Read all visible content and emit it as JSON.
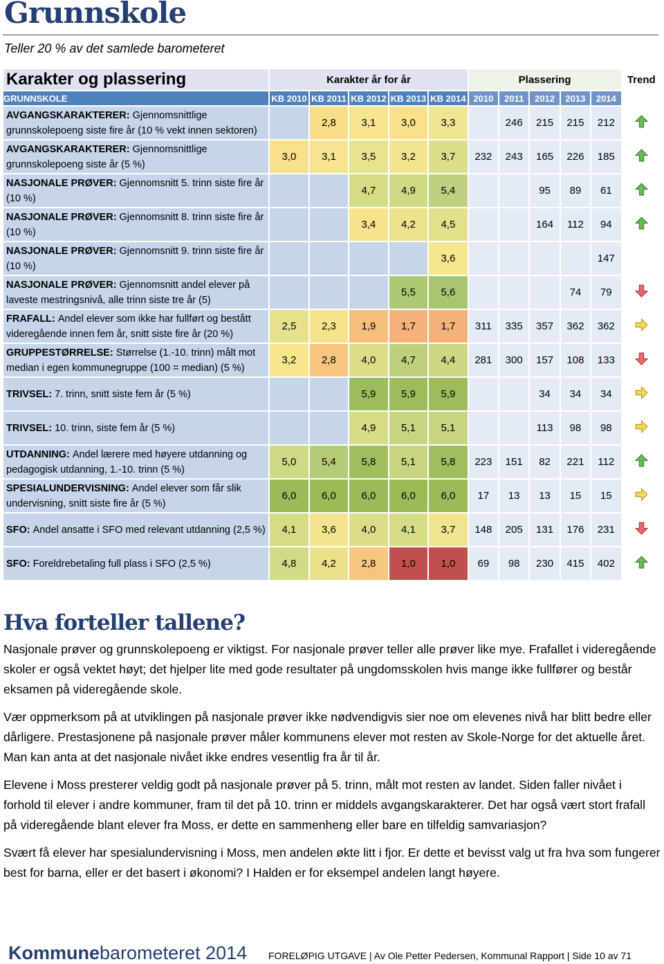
{
  "header": {
    "title": "Grunnskole",
    "subtitle": "Teller 20 % av det samlede barometeret"
  },
  "table": {
    "title": "Karakter og plassering",
    "group_grades": "Karakter år for år",
    "group_ranks": "Plassering",
    "group_trend": "Trend",
    "section": "GRUNNSKOLE",
    "grade_columns": [
      "KB 2010",
      "KB 2011",
      "KB 2012",
      "KB 2013",
      "KB 2014"
    ],
    "rank_columns": [
      "2010",
      "2011",
      "2012",
      "2013",
      "2014"
    ],
    "rows": [
      {
        "lead": "AVGANGSKARAKTERER:",
        "text": "Gjennomsnittlige grunnskolepoeng siste fire år (10 % vekt innen sektoren)",
        "grades": [
          null,
          "2,8",
          "3,1",
          "3,0",
          "3,3"
        ],
        "colors": [
          null,
          "#f9dc88",
          "#f7e48e",
          "#f9e08b",
          "#eee692"
        ],
        "ranks": [
          null,
          246,
          215,
          215,
          212
        ],
        "trend": "up"
      },
      {
        "lead": "AVGANGSKARAKTERER:",
        "text": "Gjennomsnittlige grunnskolepoeng siste år (5 %)",
        "grades": [
          "3,0",
          "3,1",
          "3,5",
          "3,2",
          "3,7"
        ],
        "colors": [
          "#f9e08b",
          "#f7e48e",
          "#e7e390",
          "#f3e58f",
          "#dcdf8a"
        ],
        "ranks": [
          232,
          243,
          165,
          226,
          185
        ],
        "trend": "up"
      },
      {
        "lead": "NASJONALE PRØVER:",
        "text": "Gjennomsnitt 5. trinn siste fire år (10 %)",
        "grades": [
          null,
          null,
          "4,7",
          "4,9",
          "5,4"
        ],
        "colors": [
          null,
          null,
          "#d6dc86",
          "#d0d984",
          "#bfd17e"
        ],
        "ranks": [
          null,
          null,
          95,
          89,
          61
        ],
        "trend": "up"
      },
      {
        "lead": "NASJONALE PRØVER:",
        "text": "Gjennomsnitt 8. trinn siste fire år (10 %)",
        "grades": [
          null,
          null,
          "3,4",
          "4,2",
          "4,5"
        ],
        "colors": [
          null,
          null,
          "#f6e38c",
          "#ebe28d",
          "#e2e08a"
        ],
        "ranks": [
          null,
          null,
          164,
          112,
          94
        ],
        "trend": "up"
      },
      {
        "lead": "NASJONALE PRØVER:",
        "text": "Gjennomsnitt 9. trinn siste fire år (10 %)",
        "grades": [
          null,
          null,
          null,
          null,
          "3,6"
        ],
        "colors": [
          null,
          null,
          null,
          null,
          "#f6e68d"
        ],
        "ranks": [
          null,
          null,
          null,
          null,
          147
        ],
        "trend": null
      },
      {
        "lead": "NASJONALE PRØVER:",
        "text": "Gjennomsnitt andel elever på laveste mestringsnivå, alle trinn siste tre år (5)",
        "grades": [
          null,
          null,
          null,
          "5,5",
          "5,6"
        ],
        "colors": [
          null,
          null,
          null,
          "#aec873",
          "#a8c56f"
        ],
        "ranks": [
          null,
          null,
          null,
          74,
          79
        ],
        "trend": "down"
      },
      {
        "lead": "FRAFALL:",
        "text": "Andel elever som ikke har fullført og bestått videregående innen fem år, snitt siste fire år (20 %)",
        "grades": [
          "2,5",
          "2,3",
          "1,9",
          "1,7",
          "1,7"
        ],
        "colors": [
          "#e5e18c",
          "#f6e48d",
          "#f6bd7d",
          "#f4b27b",
          "#f4b27b"
        ],
        "ranks": [
          311,
          335,
          357,
          362,
          362
        ],
        "trend": "right"
      },
      {
        "lead": "GRUPPESTØRRELSE:",
        "text": "Størrelse (1.-10. trinn) målt mot median i egen kommunegruppe (100 = median) (5 %)",
        "grades": [
          "3,2",
          "2,8",
          "4,0",
          "4,7",
          "4,4"
        ],
        "colors": [
          "#f9e58c",
          "#f7c580",
          "#dcdd88",
          "#bdd07b",
          "#cfd782"
        ],
        "ranks": [
          281,
          300,
          157,
          108,
          133
        ],
        "trend": "down"
      },
      {
        "lead": "TRIVSEL:",
        "text": "7. trinn, snitt siste fem år (5 %)",
        "grades": [
          null,
          null,
          "5,9",
          "5,9",
          "5,9"
        ],
        "colors": [
          null,
          null,
          "#9dbc5b",
          "#9dbc5b",
          "#9dbc5b"
        ],
        "ranks": [
          null,
          null,
          34,
          34,
          34
        ],
        "trend": "right"
      },
      {
        "lead": "TRIVSEL:",
        "text": "10. trinn, siste fem år (5 %)",
        "grades": [
          null,
          null,
          "4,9",
          "5,1",
          "5,1"
        ],
        "colors": [
          null,
          null,
          "#d8dc86",
          "#c8d580",
          "#c8d580"
        ],
        "ranks": [
          null,
          null,
          113,
          98,
          98
        ],
        "trend": "right"
      },
      {
        "lead": "UTDANNING:",
        "text": "Andel lærere med  høyere utdanning og pedagogisk utdanning, 1.-10. trinn (5 %)",
        "grades": [
          "5,0",
          "5,4",
          "5,8",
          "5,1",
          "5,8"
        ],
        "colors": [
          "#d0d984",
          "#b6cb78",
          "#a0be5e",
          "#c8d580",
          "#a0be5e"
        ],
        "ranks": [
          223,
          151,
          82,
          221,
          112
        ],
        "trend": "up"
      },
      {
        "lead": "SPESIALUNDERVISNING:",
        "text": "Andel elever som får slik undervisning, snitt siste fire år (5 %)",
        "grades": [
          "6,0",
          "6,0",
          "6,0",
          "6,0",
          "6,0"
        ],
        "colors": [
          "#9bbb59",
          "#9bbb59",
          "#9bbb59",
          "#9bbb59",
          "#9bbb59"
        ],
        "ranks": [
          17,
          13,
          13,
          15,
          15
        ],
        "trend": "right"
      },
      {
        "lead": "SFO:",
        "text": "Andel ansatte i SFO med relevant utdanning (2,5 %)",
        "grades": [
          "4,1",
          "3,6",
          "4,0",
          "4,1",
          "3,7"
        ],
        "colors": [
          "#d6dc86",
          "#f4e48d",
          "#dcdd88",
          "#d6dc86",
          "#f0e48e"
        ],
        "ranks": [
          148,
          205,
          131,
          176,
          231
        ],
        "trend": "down"
      },
      {
        "lead": "SFO:",
        "text": "Foreldrebetaling full plass i SFO (2,5 %)",
        "grades": [
          "4,8",
          "4,2",
          "2,8",
          "1,0",
          "1,0"
        ],
        "colors": [
          "#d3da85",
          "#e9e18c",
          "#f7c580",
          "#c0504d",
          "#c0504d"
        ],
        "ranks": [
          69,
          98,
          230,
          415,
          402
        ],
        "trend": "up"
      }
    ]
  },
  "article": {
    "heading": "Hva forteller tallene?",
    "paragraphs": [
      "Nasjonale prøver og grunnskolepoeng er viktigst. For nasjonale prøver teller alle prøver like mye. Frafallet i videregående skoler er også vektet høyt; det hjelper lite med gode resultater på ungdomsskolen hvis mange ikke fullfører og består eksamen på videregående skole.",
      "Vær oppmerksom på at utviklingen på nasjonale prøver ikke nødvendigvis sier noe om elevenes nivå har blitt bedre eller dårligere. Prestasjonene på nasjonale prøver måler kommunens elever mot resten av Skole-Norge for det aktuelle året. Man kan anta at det nasjonale nivået ikke endres vesentlig fra år til år.",
      "Elevene i Moss presterer veldig godt på nasjonale prøver på 5. trinn, målt mot resten av landet. Siden faller nivået i forhold til elever i andre kommuner, fram til det på 10. trinn er middels avgangskarakterer. Det har også vært stort frafall på videregående blant elever fra Moss, er dette en sammenheng eller bare en tilfeldig samvariasjon?",
      "Svært få elever har spesialundervisning i Moss, men andelen økte litt i fjor. Er dette et bevisst valg ut fra hva som fungerer best for barna, eller er det basert i økonomi? I Halden er for eksempel andelen langt høyere."
    ]
  },
  "footer": {
    "logo_main": "Kommune",
    "logo_rest": "barometeret 2014",
    "text": "FORELØPIG UTGAVE | Av Ole Petter Pedersen, Kommunal Rapport | Side 10 av 71"
  }
}
